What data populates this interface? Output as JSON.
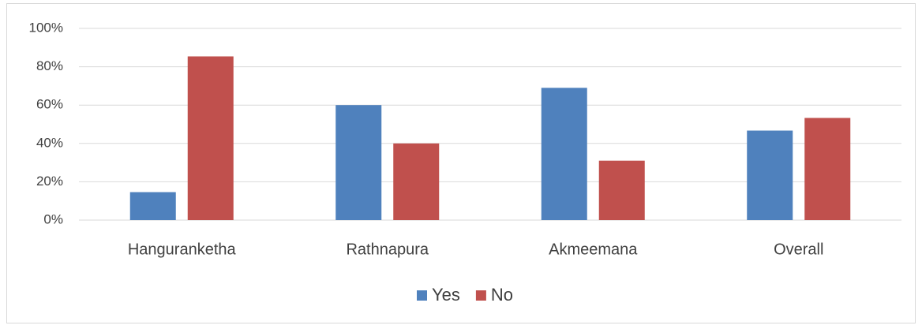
{
  "chart_data": {
    "type": "bar",
    "categories": [
      "Hanguranketha",
      "Rathnapura",
      "Akmeemana",
      "Overall"
    ],
    "series": [
      {
        "name": "Yes",
        "color": "#4f81bd",
        "values": [
          14.6,
          60,
          69,
          46.7
        ]
      },
      {
        "name": "No",
        "color": "#c0504d",
        "values": [
          85.4,
          40,
          31,
          53.3
        ]
      }
    ],
    "ylim": [
      0,
      100
    ],
    "yticks": [
      {
        "value": 0,
        "label": "0%"
      },
      {
        "value": 20,
        "label": "20%"
      },
      {
        "value": 40,
        "label": "40%"
      },
      {
        "value": 60,
        "label": "60%"
      },
      {
        "value": 80,
        "label": "80%"
      },
      {
        "value": 100,
        "label": "100%"
      }
    ],
    "grid": true,
    "legend": "bottom"
  }
}
